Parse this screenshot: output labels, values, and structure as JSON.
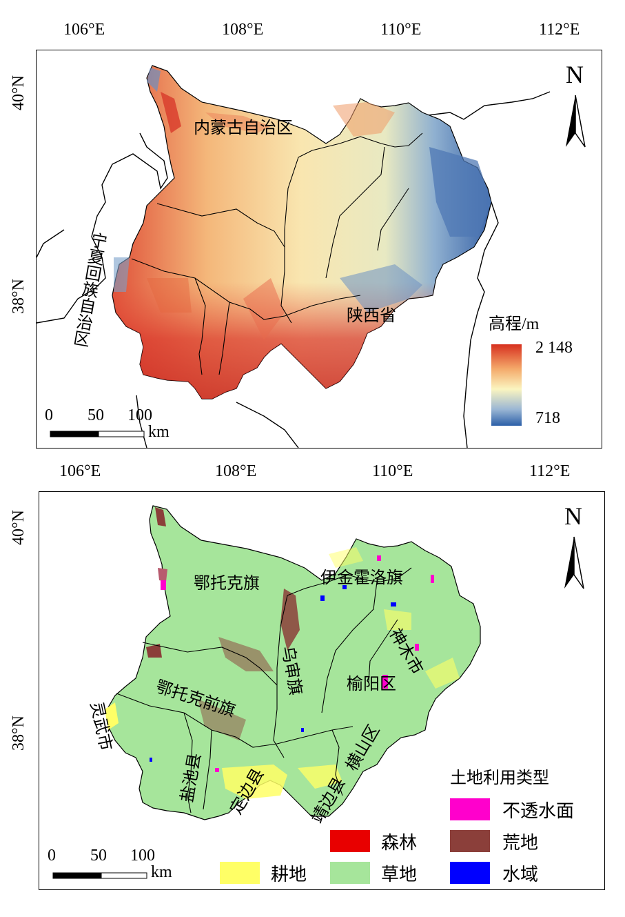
{
  "top_map": {
    "lon_ticks": [
      "106°E",
      "108°E",
      "110°E",
      "112°E"
    ],
    "lat_ticks": [
      "40°N",
      "38°N"
    ],
    "north_label": "N",
    "regions": [
      "内蒙古自治区",
      "宁夏回族自治区",
      "陕西省"
    ],
    "legend": {
      "title": "高程/m",
      "max": "2 148",
      "min": "718"
    },
    "scale": {
      "ticks": [
        "0",
        "50",
        "100"
      ],
      "unit": "km"
    },
    "colors": {
      "high": "#d7301f",
      "mid": "#fbf5c0",
      "low": "#2c5fa8"
    }
  },
  "bottom_map": {
    "lon_ticks": [
      "106°E",
      "108°E",
      "110°E",
      "112°E"
    ],
    "lat_ticks": [
      "40°N",
      "38°N"
    ],
    "north_label": "N",
    "regions": [
      "鄂托克旗",
      "伊金霍洛旗",
      "神木市",
      "乌审旗",
      "榆阳区",
      "鄂托克前旗",
      "定边县",
      "盐池县",
      "靖边县",
      "横山区",
      "灵武市"
    ],
    "legend": {
      "title": "土地利用类型",
      "items": [
        {
          "label": "不透水面",
          "color": "#ff00cc"
        },
        {
          "label": "森林",
          "color": "#e80000"
        },
        {
          "label": "荒地",
          "color": "#8b3f3a"
        },
        {
          "label": "耕地",
          "color": "#ffff66"
        },
        {
          "label": "草地",
          "color": "#a6e59b"
        },
        {
          "label": "水域",
          "color": "#0000ff"
        }
      ]
    },
    "scale": {
      "ticks": [
        "0",
        "50",
        "100"
      ],
      "unit": "km"
    }
  }
}
